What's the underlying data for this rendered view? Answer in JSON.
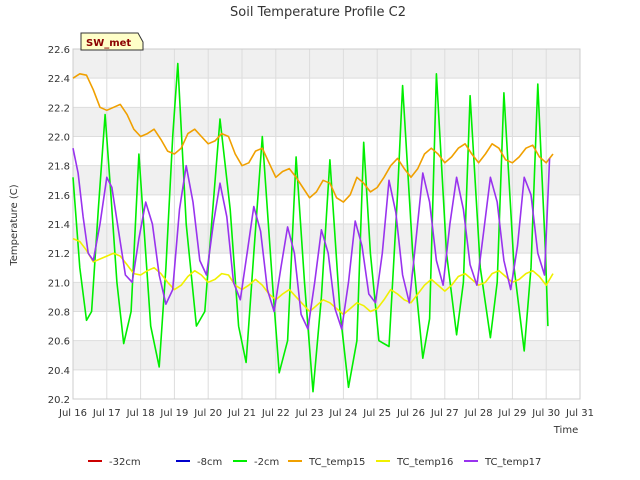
{
  "chart_data": {
    "type": "line",
    "title": "Soil Temperature Profile C2",
    "badge": "SW_met",
    "xlabel": "Time",
    "ylabel": "Temperature (C)",
    "xlim": [
      16,
      31
    ],
    "ylim": [
      20.2,
      22.6
    ],
    "x_ticks": [
      {
        "v": 16,
        "label": "Jul 16"
      },
      {
        "v": 17,
        "label": "Jul 17"
      },
      {
        "v": 18,
        "label": "Jul 18"
      },
      {
        "v": 19,
        "label": "Jul 19"
      },
      {
        "v": 20,
        "label": "Jul 20"
      },
      {
        "v": 21,
        "label": "Jul 21"
      },
      {
        "v": 22,
        "label": "Jul 22"
      },
      {
        "v": 23,
        "label": "Jul 23"
      },
      {
        "v": 24,
        "label": "Jul 24"
      },
      {
        "v": 25,
        "label": "Jul 25"
      },
      {
        "v": 26,
        "label": "Jul 26"
      },
      {
        "v": 27,
        "label": "Jul 27"
      },
      {
        "v": 28,
        "label": "Jul 28"
      },
      {
        "v": 29,
        "label": "Jul 29"
      },
      {
        "v": 30,
        "label": "Jul 30"
      },
      {
        "v": 31,
        "label": "Jul 31"
      }
    ],
    "y_ticks": [
      {
        "v": 20.2,
        "label": "20.2"
      },
      {
        "v": 20.4,
        "label": "20.4"
      },
      {
        "v": 20.6,
        "label": "20.6"
      },
      {
        "v": 20.8,
        "label": "20.8"
      },
      {
        "v": 21.0,
        "label": "21.0"
      },
      {
        "v": 21.2,
        "label": "21.2"
      },
      {
        "v": 21.4,
        "label": "21.4"
      },
      {
        "v": 21.6,
        "label": "21.6"
      },
      {
        "v": 21.8,
        "label": "21.8"
      },
      {
        "v": 22.0,
        "label": "22.0"
      },
      {
        "v": 22.2,
        "label": "22.2"
      },
      {
        "v": 22.4,
        "label": "22.4"
      },
      {
        "v": 22.6,
        "label": "22.6"
      }
    ],
    "grid": true,
    "banded_background": true,
    "legend_position": "bottom",
    "series": [
      {
        "name": "-32cm",
        "color": "#cc0000",
        "x": [],
        "y": []
      },
      {
        "name": "-8cm",
        "color": "#0000cc",
        "x": [],
        "y": []
      },
      {
        "name": "-2cm",
        "color": "#00ee00",
        "x": [
          16.0,
          16.2,
          16.4,
          16.55,
          16.75,
          16.95,
          17.12,
          17.3,
          17.5,
          17.72,
          17.95,
          18.12,
          18.3,
          18.55,
          18.75,
          18.95,
          19.1,
          19.35,
          19.65,
          19.9,
          20.1,
          20.35,
          20.65,
          20.9,
          21.12,
          21.35,
          21.6,
          21.9,
          22.1,
          22.35,
          22.6,
          22.85,
          23.1,
          23.35,
          23.6,
          23.9,
          24.15,
          24.4,
          24.6,
          24.8,
          25.05,
          25.35,
          25.6,
          25.75,
          26.05,
          26.35,
          26.55,
          26.75,
          27.05,
          27.35,
          27.55,
          27.75,
          28.05,
          28.35,
          28.55,
          28.75,
          29.05,
          29.35,
          29.55,
          29.75,
          29.98,
          30.05
        ],
        "y": [
          21.72,
          21.1,
          20.74,
          20.8,
          21.5,
          22.15,
          21.6,
          21.0,
          20.58,
          20.8,
          21.88,
          21.3,
          20.7,
          20.42,
          21.1,
          22.0,
          22.5,
          21.4,
          20.7,
          20.8,
          21.4,
          22.12,
          21.5,
          20.7,
          20.45,
          21.2,
          22.0,
          21.0,
          20.38,
          20.6,
          21.86,
          21.0,
          20.25,
          20.9,
          21.84,
          20.8,
          20.28,
          20.6,
          21.96,
          21.2,
          20.6,
          20.56,
          21.6,
          22.35,
          21.2,
          20.48,
          20.75,
          22.43,
          21.2,
          20.64,
          21.0,
          22.28,
          21.1,
          20.62,
          21.0,
          22.3,
          21.1,
          20.53,
          21.1,
          22.36,
          21.2,
          20.7
        ]
      },
      {
        "name": "TC_temp15",
        "color": "#f0a000",
        "x": [
          16.0,
          16.2,
          16.4,
          16.6,
          16.8,
          17.0,
          17.2,
          17.4,
          17.6,
          17.8,
          18.0,
          18.2,
          18.4,
          18.6,
          18.8,
          19.0,
          19.2,
          19.4,
          19.6,
          19.8,
          20.0,
          20.2,
          20.4,
          20.6,
          20.8,
          21.0,
          21.2,
          21.4,
          21.6,
          21.8,
          22.0,
          22.2,
          22.4,
          22.6,
          22.8,
          23.0,
          23.2,
          23.4,
          23.6,
          23.8,
          24.0,
          24.2,
          24.4,
          24.6,
          24.8,
          25.0,
          25.2,
          25.4,
          25.6,
          25.8,
          26.0,
          26.2,
          26.4,
          26.6,
          26.8,
          27.0,
          27.2,
          27.4,
          27.6,
          27.8,
          28.0,
          28.2,
          28.4,
          28.6,
          28.8,
          29.0,
          29.2,
          29.4,
          29.6,
          29.8,
          30.0,
          30.2
        ],
        "y": [
          22.4,
          22.43,
          22.42,
          22.32,
          22.2,
          22.18,
          22.2,
          22.22,
          22.15,
          22.05,
          22.0,
          22.02,
          22.05,
          21.98,
          21.9,
          21.88,
          21.92,
          22.02,
          22.05,
          22.0,
          21.95,
          21.97,
          22.02,
          22.0,
          21.88,
          21.8,
          21.82,
          21.9,
          21.92,
          21.82,
          21.72,
          21.76,
          21.78,
          21.72,
          21.65,
          21.58,
          21.62,
          21.7,
          21.68,
          21.58,
          21.55,
          21.6,
          21.72,
          21.68,
          21.62,
          21.65,
          21.72,
          21.8,
          21.85,
          21.78,
          21.72,
          21.78,
          21.88,
          21.92,
          21.88,
          21.82,
          21.86,
          21.92,
          21.95,
          21.88,
          21.82,
          21.88,
          21.95,
          21.92,
          21.84,
          21.82,
          21.86,
          21.92,
          21.94,
          21.86,
          21.82,
          21.88
        ]
      },
      {
        "name": "TC_temp16",
        "color": "#f0f000",
        "x": [
          16.0,
          16.2,
          16.4,
          16.6,
          16.8,
          17.0,
          17.2,
          17.4,
          17.6,
          17.8,
          18.0,
          18.2,
          18.4,
          18.6,
          18.8,
          19.0,
          19.2,
          19.4,
          19.6,
          19.8,
          20.0,
          20.2,
          20.4,
          20.6,
          20.8,
          21.0,
          21.2,
          21.4,
          21.6,
          21.8,
          22.0,
          22.2,
          22.4,
          22.6,
          22.8,
          23.0,
          23.2,
          23.4,
          23.6,
          23.8,
          24.0,
          24.2,
          24.4,
          24.6,
          24.8,
          25.0,
          25.2,
          25.4,
          25.6,
          25.8,
          26.0,
          26.2,
          26.4,
          26.6,
          26.8,
          27.0,
          27.2,
          27.4,
          27.6,
          27.8,
          28.0,
          28.2,
          28.4,
          28.6,
          28.8,
          29.0,
          29.2,
          29.4,
          29.6,
          29.8,
          30.0,
          30.2
        ],
        "y": [
          21.3,
          21.28,
          21.22,
          21.14,
          21.16,
          21.18,
          21.2,
          21.18,
          21.12,
          21.06,
          21.05,
          21.08,
          21.1,
          21.06,
          21.0,
          20.95,
          20.98,
          21.04,
          21.08,
          21.05,
          21.0,
          21.02,
          21.06,
          21.05,
          20.98,
          20.95,
          20.98,
          21.02,
          20.98,
          20.92,
          20.88,
          20.92,
          20.95,
          20.9,
          20.85,
          20.8,
          20.84,
          20.88,
          20.86,
          20.82,
          20.78,
          20.82,
          20.86,
          20.84,
          20.8,
          20.82,
          20.88,
          20.95,
          20.92,
          20.88,
          20.86,
          20.92,
          20.98,
          21.02,
          20.98,
          20.94,
          20.98,
          21.04,
          21.06,
          21.02,
          20.98,
          21.0,
          21.06,
          21.08,
          21.04,
          21.0,
          21.02,
          21.06,
          21.08,
          21.04,
          20.98,
          21.06
        ]
      },
      {
        "name": "TC_temp17",
        "color": "#9933ee",
        "x": [
          16.0,
          16.15,
          16.3,
          16.45,
          16.6,
          16.8,
          17.0,
          17.15,
          17.35,
          17.55,
          17.75,
          17.95,
          18.15,
          18.35,
          18.55,
          18.75,
          18.95,
          19.15,
          19.35,
          19.55,
          19.75,
          19.95,
          20.15,
          20.35,
          20.55,
          20.75,
          20.95,
          21.15,
          21.35,
          21.55,
          21.75,
          21.95,
          22.15,
          22.35,
          22.55,
          22.75,
          22.95,
          23.15,
          23.35,
          23.55,
          23.75,
          23.95,
          24.15,
          24.35,
          24.55,
          24.75,
          24.95,
          25.15,
          25.35,
          25.55,
          25.75,
          25.95,
          26.15,
          26.35,
          26.55,
          26.75,
          26.95,
          27.15,
          27.35,
          27.55,
          27.75,
          27.95,
          28.15,
          28.35,
          28.55,
          28.75,
          28.95,
          29.15,
          29.35,
          29.55,
          29.75,
          29.95,
          30.1
        ],
        "y": [
          21.92,
          21.75,
          21.45,
          21.2,
          21.15,
          21.4,
          21.72,
          21.65,
          21.35,
          21.05,
          21.0,
          21.3,
          21.55,
          21.4,
          21.05,
          20.85,
          20.95,
          21.5,
          21.8,
          21.55,
          21.15,
          21.05,
          21.4,
          21.68,
          21.45,
          21.0,
          20.88,
          21.2,
          21.52,
          21.35,
          20.95,
          20.8,
          21.1,
          21.38,
          21.2,
          20.78,
          20.68,
          21.0,
          21.36,
          21.2,
          20.82,
          20.68,
          21.0,
          21.42,
          21.25,
          20.92,
          20.86,
          21.2,
          21.7,
          21.48,
          21.05,
          20.86,
          21.3,
          21.75,
          21.55,
          21.15,
          20.98,
          21.4,
          21.72,
          21.5,
          21.12,
          20.98,
          21.35,
          21.72,
          21.55,
          21.15,
          20.95,
          21.25,
          21.72,
          21.6,
          21.2,
          21.05,
          21.85
        ]
      }
    ]
  }
}
